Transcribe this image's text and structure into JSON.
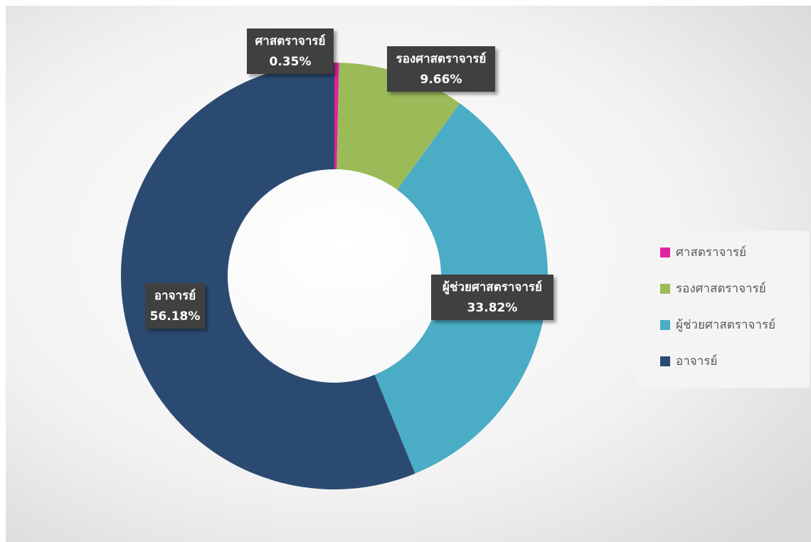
{
  "chart_data": {
    "type": "donut",
    "categories": [
      "ศาสตราจารย์",
      "รองศาสตราจารย์",
      "ผู้ช่วยศาสตราจารย์",
      "อาจารย์"
    ],
    "values": [
      0.35,
      9.66,
      33.82,
      56.18
    ],
    "value_labels": [
      "0.35%",
      "9.66%",
      "33.82%",
      "56.18%"
    ],
    "colors": [
      "#e2239f",
      "#9bbb59",
      "#4bacc6",
      "#2b4a72"
    ],
    "legend": "right"
  }
}
